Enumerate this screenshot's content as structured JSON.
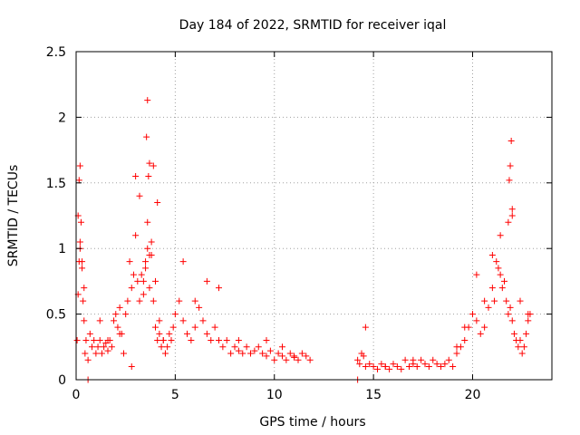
{
  "chart_data": {
    "type": "scatter",
    "title": "Day 184 of 2022, SRMTID for receiver iqal",
    "xlabel": "GPS time / hours",
    "ylabel": "SRMTID / TECUs",
    "xlim": [
      0,
      24
    ],
    "ylim": [
      0,
      2.5
    ],
    "xticks": [
      0,
      5,
      10,
      15,
      20
    ],
    "yticks": [
      0,
      0.5,
      1,
      1.5,
      2,
      2.5
    ],
    "xtick_labels": [
      "0",
      "5",
      "10",
      "15",
      "20"
    ],
    "ytick_labels": [
      "0",
      "0.5",
      "1",
      "1.5",
      "2",
      "2.5"
    ],
    "grid": true,
    "marker": "+",
    "color": "#ff0000",
    "series": [
      {
        "name": "SRMTID",
        "x": [
          0.05,
          0.1,
          0.15,
          0.2,
          0.25,
          0.3,
          0.35,
          0.4,
          0.45,
          0.5,
          0.6,
          0.7,
          0.8,
          0.9,
          1.0,
          1.1,
          1.2,
          1.3,
          1.4,
          1.5,
          1.6,
          1.7,
          1.8,
          1.9,
          2.0,
          2.1,
          2.2,
          2.3,
          2.4,
          2.5,
          2.6,
          2.7,
          2.8,
          2.9,
          3.0,
          3.1,
          3.2,
          3.3,
          3.4,
          3.5,
          3.6,
          3.7,
          3.8,
          3.9,
          4.0,
          4.1,
          4.2,
          4.3,
          4.4,
          4.5,
          4.6,
          4.7,
          4.8,
          4.9,
          5.0,
          5.2,
          5.4,
          5.6,
          5.8,
          6.0,
          6.2,
          6.4,
          6.6,
          6.8,
          7.0,
          7.2,
          7.4,
          7.6,
          7.8,
          8.0,
          8.2,
          8.4,
          8.6,
          8.8,
          9.0,
          9.2,
          9.4,
          9.6,
          9.8,
          10.0,
          10.2,
          10.4,
          10.6,
          10.8,
          11.0,
          11.2,
          11.4,
          11.6,
          11.8,
          14.2,
          14.3,
          14.4,
          14.5,
          14.6,
          14.8,
          15.0,
          15.2,
          15.4,
          15.6,
          15.8,
          16.0,
          16.2,
          16.4,
          16.6,
          16.8,
          17.0,
          17.2,
          17.4,
          17.6,
          17.8,
          18.0,
          18.2,
          18.4,
          18.6,
          18.8,
          19.0,
          19.2,
          19.4,
          19.6,
          19.8,
          20.0,
          20.2,
          20.4,
          20.6,
          20.8,
          21.0,
          21.1,
          21.2,
          21.3,
          21.4,
          21.5,
          21.6,
          21.7,
          21.8,
          21.9,
          22.0,
          22.1,
          22.2,
          22.3,
          22.4,
          22.5,
          22.6,
          22.7,
          22.8,
          22.9,
          0.1,
          0.2,
          0.3,
          0.4,
          1.2,
          1.6,
          2.2,
          2.8,
          3.0,
          3.2,
          3.4,
          3.5,
          3.6,
          3.7,
          3.8,
          4.0,
          4.2,
          4.4,
          5.4,
          6.0,
          6.6,
          7.2,
          8.2,
          9.6,
          10.4,
          11.0,
          14.6,
          15.6,
          17.0,
          18.4,
          19.2,
          19.6,
          20.2,
          20.6,
          21.0,
          21.4,
          21.8,
          22.0,
          22.4,
          22.8,
          3.55,
          3.6,
          3.65,
          3.7,
          3.9,
          4.1,
          0.15,
          0.2,
          21.85,
          21.9,
          21.95,
          22.0,
          0.6,
          14.2
        ],
        "y": [
          0.3,
          0.65,
          0.9,
          1.05,
          1.2,
          0.85,
          0.6,
          0.45,
          0.2,
          0.3,
          0.15,
          0.35,
          0.25,
          0.3,
          0.2,
          0.25,
          0.3,
          0.2,
          0.25,
          0.28,
          0.22,
          0.3,
          0.25,
          0.45,
          0.5,
          0.4,
          0.55,
          0.35,
          0.2,
          0.5,
          0.6,
          0.9,
          0.7,
          0.8,
          1.1,
          0.75,
          0.6,
          0.8,
          0.65,
          0.9,
          1.0,
          0.7,
          0.95,
          0.6,
          0.4,
          0.3,
          0.35,
          0.25,
          0.3,
          0.2,
          0.25,
          0.35,
          0.3,
          0.4,
          0.5,
          0.6,
          0.45,
          0.35,
          0.3,
          0.4,
          0.55,
          0.45,
          0.35,
          0.3,
          0.4,
          0.3,
          0.25,
          0.3,
          0.2,
          0.25,
          0.22,
          0.2,
          0.25,
          0.2,
          0.22,
          0.25,
          0.2,
          0.18,
          0.22,
          0.15,
          0.2,
          0.18,
          0.15,
          0.2,
          0.17,
          0.15,
          0.2,
          0.18,
          0.15,
          0.15,
          0.12,
          0.2,
          0.18,
          0.1,
          0.12,
          0.1,
          0.08,
          0.12,
          0.1,
          0.08,
          0.12,
          0.1,
          0.08,
          0.15,
          0.1,
          0.12,
          0.1,
          0.15,
          0.12,
          0.1,
          0.15,
          0.12,
          0.1,
          0.12,
          0.15,
          0.1,
          0.2,
          0.25,
          0.3,
          0.4,
          0.5,
          0.45,
          0.35,
          0.4,
          0.55,
          0.7,
          0.6,
          0.9,
          0.85,
          0.8,
          0.7,
          0.75,
          0.6,
          0.5,
          0.55,
          0.45,
          0.35,
          0.3,
          0.25,
          0.3,
          0.2,
          0.25,
          0.35,
          0.45,
          0.5,
          1.25,
          1.0,
          0.9,
          0.7,
          0.45,
          0.3,
          0.35,
          0.1,
          1.55,
          1.4,
          0.75,
          0.85,
          1.2,
          0.95,
          1.05,
          0.75,
          0.45,
          0.3,
          0.9,
          0.6,
          0.75,
          0.7,
          0.3,
          0.3,
          0.25,
          0.18,
          0.4,
          0.1,
          0.15,
          0.1,
          0.25,
          0.4,
          0.8,
          0.6,
          0.95,
          1.1,
          1.2,
          1.3,
          0.6,
          0.5,
          1.85,
          2.13,
          1.55,
          1.65,
          1.63,
          1.35,
          1.52,
          1.63,
          1.52,
          1.63,
          1.82,
          1.25,
          0.0,
          0.0
        ]
      }
    ]
  }
}
